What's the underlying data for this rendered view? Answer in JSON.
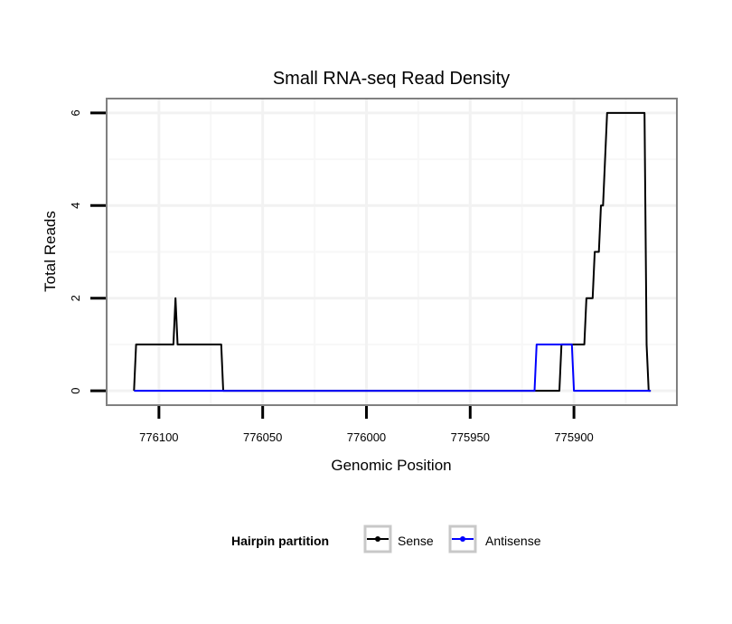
{
  "chart_data": {
    "type": "line",
    "title": "Small RNA-seq Read Density",
    "xlabel": "Genomic Position",
    "ylabel": "Total Reads",
    "xlim": [
      776125.2,
      775850.4
    ],
    "ylim": [
      -0.31,
      6.31
    ],
    "x_reversed": true,
    "x_ticks": [
      776100,
      776050,
      776000,
      775950,
      775900
    ],
    "x_tick_labels": [
      "776100",
      "776050",
      "776000",
      "775950",
      "775900"
    ],
    "y_ticks": [
      0,
      2,
      4,
      6
    ],
    "y_tick_labels": [
      "0",
      "2",
      "4",
      "6"
    ],
    "grid": true,
    "legend": {
      "title": "Hairpin partition",
      "placement": "bottom",
      "entries": [
        "Sense",
        "Antisense"
      ]
    },
    "series": [
      {
        "name": "Sense",
        "color": "#000000",
        "points": [
          [
            776112,
            0
          ],
          [
            776111,
            1
          ],
          [
            776093,
            1
          ],
          [
            776092,
            2
          ],
          [
            776091,
            1
          ],
          [
            776070,
            1
          ],
          [
            776069,
            0
          ],
          [
            775907,
            0
          ],
          [
            775906,
            1
          ],
          [
            775895,
            1
          ],
          [
            775894,
            2
          ],
          [
            775891,
            2
          ],
          [
            775890,
            3
          ],
          [
            775888,
            3
          ],
          [
            775887,
            4
          ],
          [
            775886,
            4
          ],
          [
            775884,
            6
          ],
          [
            775866,
            6
          ],
          [
            775865,
            1
          ],
          [
            775864,
            0
          ],
          [
            775863,
            0
          ]
        ]
      },
      {
        "name": "Antisense",
        "color": "#0000ff",
        "points": [
          [
            776112,
            0
          ],
          [
            775919,
            0
          ],
          [
            775918,
            1
          ],
          [
            775901,
            1
          ],
          [
            775900,
            0
          ],
          [
            775863,
            0
          ]
        ]
      }
    ]
  }
}
